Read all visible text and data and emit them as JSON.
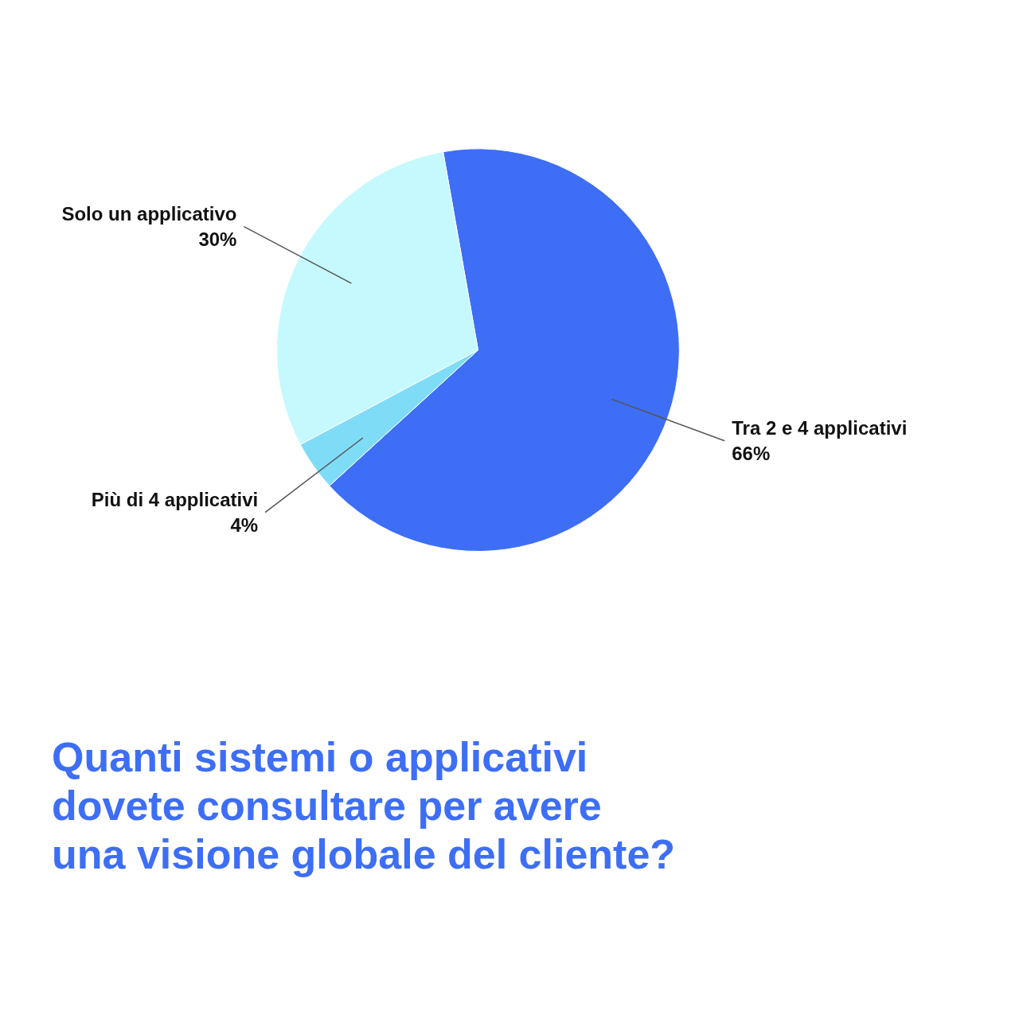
{
  "chart_data": {
    "type": "pie",
    "title": "Quanti sistemi o applicativi\ndovete consultare per avere\nuna visione globale del cliente?",
    "categories": [
      "Tra 2 e 4 applicativi",
      "Più di 4 applicativi",
      "Solo un applicativo"
    ],
    "values": [
      66,
      4,
      30
    ],
    "colors": [
      "#3d6ef5",
      "#7fdcf7",
      "#c5f9fd"
    ],
    "value_labels": [
      "66%",
      "4%",
      "30%"
    ]
  }
}
